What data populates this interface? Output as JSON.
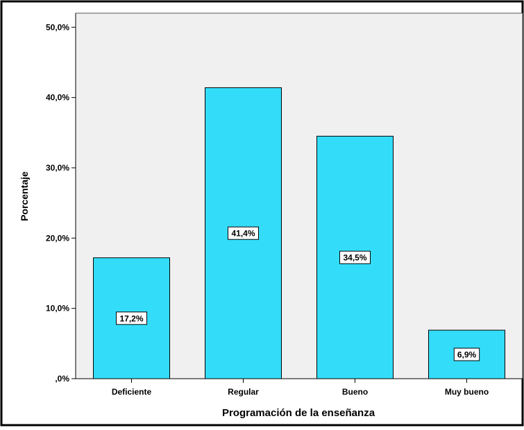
{
  "chart_data": {
    "type": "bar",
    "categories": [
      "Deficiente",
      "Regular",
      "Bueno",
      "Muy bueno"
    ],
    "values": [
      17.2,
      41.4,
      34.5,
      6.9
    ],
    "value_labels": [
      "17,2%",
      "41,4%",
      "34,5%",
      "6,9%"
    ],
    "xlabel": "Programación de la enseñanza",
    "ylabel": "Porcentaje",
    "ylim": [
      0,
      52
    ],
    "yticks": [
      0,
      10,
      20,
      30,
      40,
      50
    ],
    "ytick_labels": [
      ",0%",
      "10,0%",
      "20,0%",
      "30,0%",
      "40,0%",
      "50,0%"
    ],
    "grid": false,
    "colors": {
      "bar_fill": "#33ddfa",
      "plot_background": "#f0f0f0",
      "outer_background": "#ffffff"
    }
  }
}
